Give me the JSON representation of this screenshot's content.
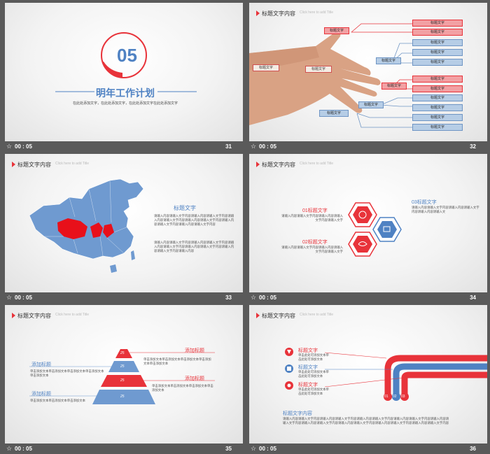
{
  "slides": [
    {
      "number": "31",
      "time": "00 : 05",
      "big_number": "05",
      "title": "明年工作计划",
      "subtitle": "在此处添加文字，在此处添加文字，在此处添加文字在此处添加文字"
    },
    {
      "number": "32",
      "time": "00 : 05",
      "header": "标题文字内容",
      "header_sub": "Click here to add Title",
      "boxes": [
        "标题文字",
        "标题文字",
        "标题文字",
        "标题文字",
        "标题文字",
        "标题文字",
        "标题文字",
        "标题文字",
        "标题文字",
        "标题文字",
        "标题文字",
        "标题文字",
        "标题文字",
        "标题文字",
        "标题文字",
        "标题文字",
        "标题文字",
        "标题文字"
      ]
    },
    {
      "number": "33",
      "time": "00 : 05",
      "header": "标题文字内容",
      "header_sub": "Click here to add Title",
      "title": "标题文字",
      "para1": "请输入内容请输入文字内容请输入内容请输入文字内容请输入内容请输入文字内容请输入内容请输入文字内容请输入内容请输入文字内容请输入内容请输入文字内容",
      "para2": "请输入内容请输入文字内容请输入内容请输入文字内容请输入内容请输入文字内容请输入内容请输入文字内容请输入内容请输入文字内容请输入内容"
    },
    {
      "number": "34",
      "time": "00 : 05",
      "header": "标题文字内容",
      "header_sub": "Click here to add Title",
      "item1_title": "01标题文字",
      "item1_text": "请输入内容请输入文字内容请输入内容请输入文字内容请输入文字",
      "item2_title": "02标题文字",
      "item2_text": "请输入内容请输入文字内容请输入内容请输入文字内容请输入文字",
      "item3_title": "03标题文字",
      "item3_text": "请输入内容请输入文字内容请输入内容请输入文字内容请输入内容请输入文"
    },
    {
      "number": "35",
      "time": "00 : 05",
      "header": "标题文字内容",
      "header_sub": "Click here to add Title",
      "left1_title": "添加标题",
      "left1_text": "单击添加文本单击添加文本单击添加文本单击添加文本单击添加文本",
      "left2_title": "添加标题",
      "left2_text": "单击添加文本单击添加文本单击添加文本",
      "right1_title": "添加标题",
      "right1_text": "单击添加文本单击添加文本单击添加文本单击添加文本单击添加文本",
      "right2_title": "添加标题",
      "right2_text": "单击添加文本单击添加文本单击添加文本单击添加文本",
      "tiers": [
        "25",
        "25",
        "25",
        "25"
      ]
    },
    {
      "number": "36",
      "time": "00 : 05",
      "header": "标题文字内容",
      "header_sub": "Click here to add Title",
      "items": [
        {
          "title": "标题文字",
          "text": "单击此处可添加文本单击此处可添加文本"
        },
        {
          "title": "标题文字",
          "text": "单击此处可添加文本单击此处可添加文本"
        },
        {
          "title": "标题文字",
          "text": "单击此处可添加文本单击此处可添加文本"
        }
      ],
      "pipe_labels": [
        "01",
        "02",
        "03"
      ],
      "bottom_title": "标题文字内容",
      "bottom_text": "请输入内容请输入文字内容请输入内容请输入文字内容请输入内容请输入文字内容请输入内容请输入文字内容请输入内容请输入文字内容请输入内容请输入文字内容请输入内容请输入文字内容请输入内容请输入文字内容请输入内容请输入文字内容"
    }
  ],
  "colors": {
    "red": "#e8333a",
    "blue": "#4f82c3",
    "light_blue": "#6f9ad0",
    "footer": "#5a5a5a"
  }
}
